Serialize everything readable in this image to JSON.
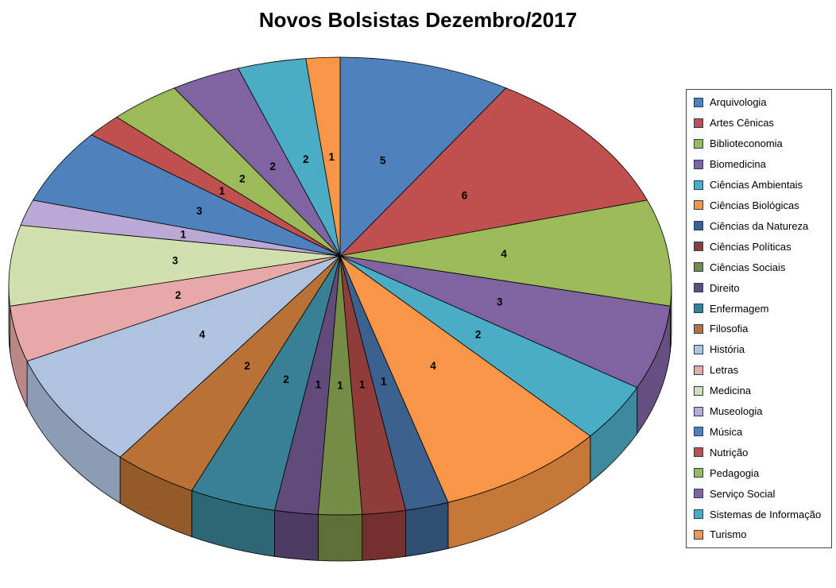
{
  "title": "Novos Bolsistas Dezembro/2017",
  "chart_data": {
    "type": "pie",
    "style": "3d",
    "title": "Novos Bolsistas Dezembro/2017",
    "legend_position": "right",
    "data_labels": "value",
    "start_angle_deg": 0,
    "direction": "clockwise",
    "total": 53,
    "categories": [
      "Arquivologia",
      "Artes Cênicas",
      "Biblioteconomia",
      "Biomedicina",
      "Ciências Ambientais",
      "Ciências Biológicas",
      "Ciências da Natureza",
      "Ciências Políticas",
      "Ciências Sociais",
      "Direito",
      "Enfermagem",
      "Filosofia",
      "História",
      "Letras",
      "Medicina",
      "Museologia",
      "Música",
      "Nutrição",
      "Pedagogia",
      "Serviço Social",
      "Sistemas de Informação",
      "Turismo"
    ],
    "values": [
      5,
      6,
      4,
      3,
      2,
      4,
      1,
      1,
      1,
      1,
      2,
      2,
      4,
      2,
      3,
      1,
      3,
      1,
      2,
      2,
      2,
      1
    ],
    "colors": [
      "#4F81BD",
      "#C0504D",
      "#9BBB59",
      "#8064A2",
      "#4BACC6",
      "#F79646",
      "#3B618E",
      "#903C3A",
      "#748C43",
      "#604B7A",
      "#388194",
      "#B97135",
      "#AFC3E1",
      "#E6A9A7",
      "#D2E0B0",
      "#B9A9D4",
      "#4F81BD",
      "#C0504D",
      "#9BBB59",
      "#8064A2",
      "#4BACC6",
      "#F79646"
    ]
  }
}
